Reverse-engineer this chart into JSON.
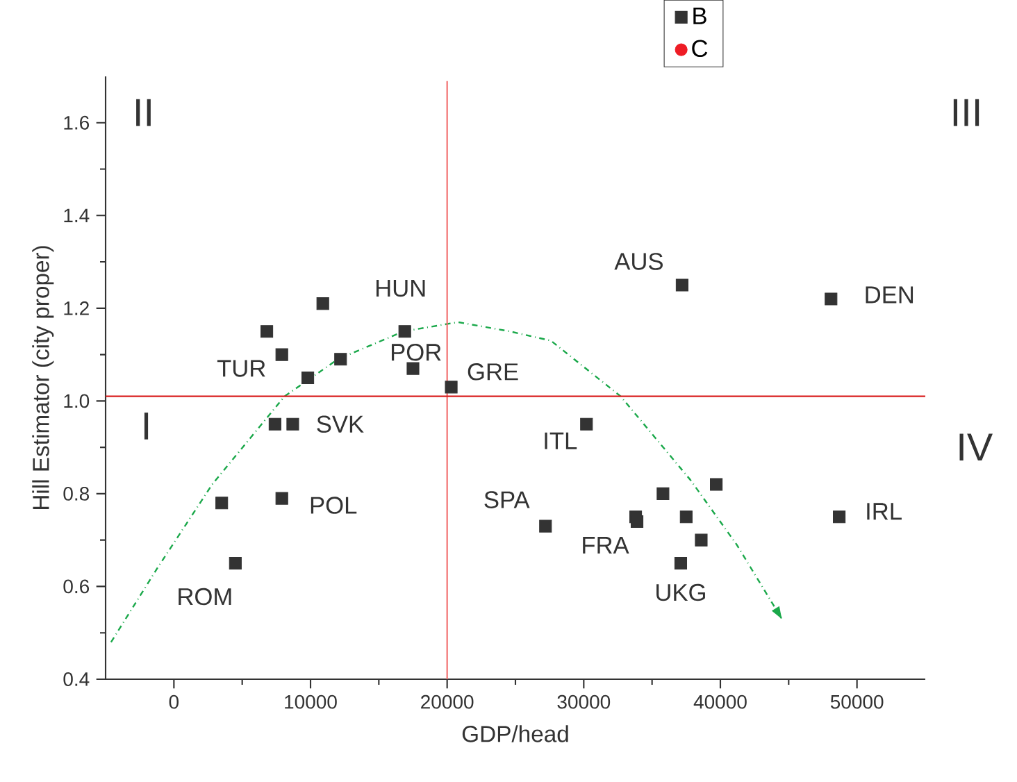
{
  "chart_data": {
    "type": "scatter",
    "xlabel": "GDP/head",
    "ylabel": "Hill Estimator (city proper)",
    "xlim": [
      -5000,
      55000
    ],
    "xticks": [
      0,
      10000,
      20000,
      30000,
      40000,
      50000
    ],
    "ylim": [
      0.4,
      1.7
    ],
    "yticks": [
      0.4,
      0.6,
      0.8,
      {
        "value": 1,
        "label": "1.0"
      },
      1.2,
      1.4,
      1.6
    ],
    "legend": "top right",
    "marker": "square",
    "series": [
      {
        "name": "B",
        "color": "#333333",
        "x": [
          3500,
          4500,
          6800,
          7900,
          7400,
          8700,
          7900,
          9800,
          10900,
          12200,
          16900,
          17500,
          20300,
          30200,
          27200,
          33800,
          33900,
          35800,
          37500,
          38600,
          37100,
          39700,
          37200,
          48100,
          48700
        ],
        "values": [
          0.78,
          0.65,
          1.15,
          1.1,
          0.95,
          0.95,
          0.79,
          1.05,
          1.21,
          1.09,
          1.15,
          1.07,
          1.03,
          0.95,
          0.73,
          0.75,
          0.74,
          0.8,
          0.75,
          0.7,
          0.65,
          0.82,
          1.25,
          1.22,
          0.75
        ]
      },
      {
        "name": "C",
        "color": "#ee1c25",
        "marker": "circle"
      },
      {
        "type": "line",
        "color": "#1aa84a",
        "marker": "none",
        "line_style": "dashed",
        "x": [
          -4600,
          -1200,
          2800,
          8100,
          12000,
          16800,
          20800,
          24600,
          27600,
          32700,
          37800,
          41200,
          44500
        ],
        "values": [
          0.48,
          0.64,
          0.82,
          1.01,
          1.09,
          1.15,
          1.17,
          1.15,
          1.13,
          1.01,
          0.83,
          0.69,
          0.53
        ]
      }
    ],
    "ref_lines": [
      {
        "axis": "x",
        "value": 20000,
        "color": "#f26d6d"
      },
      {
        "axis": "y",
        "value": 1.01,
        "color": "#d92020"
      }
    ],
    "annotations": [
      {
        "text": "HUN",
        "x": 10900,
        "y": 1.21
      },
      {
        "text": "TUR",
        "x": 7900,
        "y": 1.1
      },
      {
        "text": "POR",
        "x": 16900,
        "y": 1.15
      },
      {
        "text": "GRE",
        "x": 20300,
        "y": 1.03
      },
      {
        "text": "SVK",
        "x": 8700,
        "y": 0.95
      },
      {
        "text": "POL",
        "x": 7900,
        "y": 0.79
      },
      {
        "text": "ROM",
        "x": 4500,
        "y": 0.65
      },
      {
        "text": "AUS",
        "x": 37200,
        "y": 1.25
      },
      {
        "text": "DEN",
        "x": 48100,
        "y": 1.22
      },
      {
        "text": "ITL",
        "x": 30200,
        "y": 0.95
      },
      {
        "text": "SPA",
        "x": 27200,
        "y": 0.73
      },
      {
        "text": "FRA",
        "x": 33900,
        "y": 0.74
      },
      {
        "text": "UKG",
        "x": 37100,
        "y": 0.65
      },
      {
        "text": "IRL",
        "x": 48700,
        "y": 0.75
      },
      "I",
      "II",
      "III",
      "IV"
    ]
  }
}
